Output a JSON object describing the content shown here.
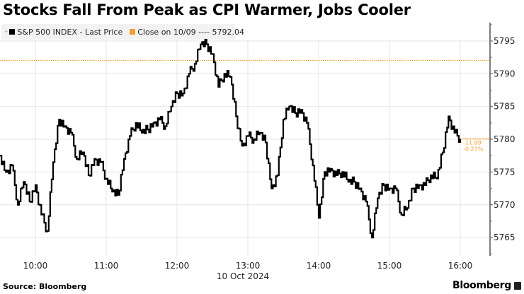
{
  "title": "Stocks Fall From Peak as CPI Warmer, Jobs Cooler",
  "legend": {
    "series_label": "S&P 500 INDEX - Last Price",
    "series_color": "#000000",
    "close_label": "Close on 10/09 ---- 5792.04",
    "close_color": "#f0a030"
  },
  "annotation": {
    "change": "-11.99",
    "change_pct": "-0.21%"
  },
  "footer": {
    "source": "Source: Bloomberg",
    "brand": "Bloomberg"
  },
  "x_axis": {
    "date_label": "10 Oct 2024",
    "ticks": [
      "10:00",
      "11:00",
      "12:00",
      "13:00",
      "14:00",
      "15:00",
      "16:00"
    ]
  },
  "y_axis": {
    "ticks": [
      "5795",
      "5790",
      "5785",
      "5780",
      "5775",
      "5770",
      "5765"
    ]
  },
  "chart_data": {
    "type": "line",
    "title": "Stocks Fall From Peak as CPI Warmer, Jobs Cooler",
    "xlabel": "10 Oct 2024",
    "ylabel": "",
    "ylim": [
      5762,
      5797
    ],
    "grid": true,
    "legend_position": "top-left",
    "series": [
      {
        "name": "S&P 500 INDEX - Last Price",
        "color": "#000000",
        "x": [
          "09:30",
          "09:35",
          "09:40",
          "09:45",
          "09:50",
          "09:55",
          "10:00",
          "10:05",
          "10:10",
          "10:15",
          "10:20",
          "10:25",
          "10:30",
          "10:35",
          "10:40",
          "10:45",
          "10:50",
          "10:55",
          "11:00",
          "11:05",
          "11:10",
          "11:15",
          "11:20",
          "11:25",
          "11:30",
          "11:35",
          "11:40",
          "11:45",
          "11:50",
          "11:55",
          "12:00",
          "12:05",
          "12:10",
          "12:15",
          "12:20",
          "12:25",
          "12:30",
          "12:35",
          "12:40",
          "12:45",
          "12:50",
          "12:55",
          "13:00",
          "13:05",
          "13:10",
          "13:15",
          "13:20",
          "13:25",
          "13:30",
          "13:35",
          "13:40",
          "13:45",
          "13:50",
          "13:55",
          "14:00",
          "14:05",
          "14:10",
          "14:15",
          "14:20",
          "14:25",
          "14:30",
          "14:35",
          "14:40",
          "14:45",
          "14:50",
          "14:55",
          "15:00",
          "15:05",
          "15:10",
          "15:15",
          "15:20",
          "15:25",
          "15:30",
          "15:35",
          "15:40",
          "15:45",
          "15:50",
          "15:55",
          "16:00"
        ],
        "values": [
          5777.5,
          5775.0,
          5776.0,
          5770.0,
          5773.5,
          5770.5,
          5773.0,
          5768.5,
          5766.0,
          5776.5,
          5783.0,
          5782.0,
          5781.0,
          5777.0,
          5778.0,
          5774.5,
          5777.0,
          5776.5,
          5774.0,
          5772.0,
          5771.5,
          5777.0,
          5780.5,
          5782.5,
          5781.0,
          5781.5,
          5782.5,
          5783.0,
          5782.0,
          5785.0,
          5787.0,
          5787.0,
          5790.0,
          5791.5,
          5794.5,
          5794.5,
          5793.0,
          5788.0,
          5790.0,
          5789.5,
          5783.5,
          5779.0,
          5780.5,
          5780.0,
          5781.0,
          5779.5,
          5772.5,
          5774.5,
          5783.0,
          5785.0,
          5784.0,
          5784.5,
          5782.5,
          5776.0,
          5768.0,
          5775.0,
          5775.5,
          5774.5,
          5775.0,
          5773.5,
          5773.5,
          5772.5,
          5770.5,
          5765.0,
          5771.0,
          5773.0,
          5772.5,
          5772.5,
          5768.5,
          5769.5,
          5772.5,
          5773.0,
          5773.0,
          5774.5,
          5774.0,
          5778.0,
          5783.5,
          5781.0,
          5780.05
        ]
      },
      {
        "name": "Close on 10/09",
        "color": "#f0a030",
        "value": 5792.04,
        "style": "dotted"
      }
    ],
    "last_value_annotation": {
      "change": -11.99,
      "change_pct": -0.21,
      "value": 5780.05
    }
  }
}
